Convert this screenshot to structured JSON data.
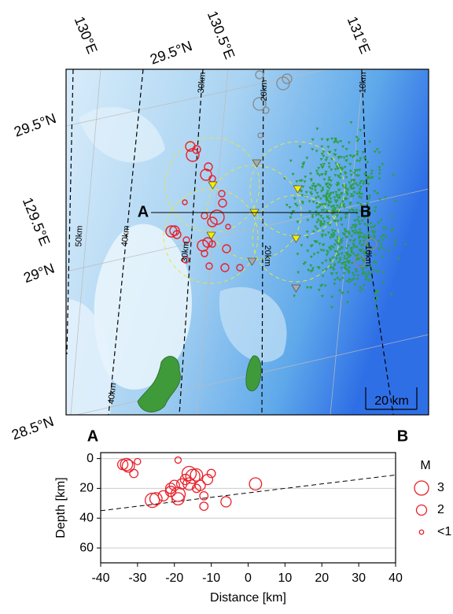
{
  "chart_data": [
    {
      "type": "map",
      "top_labels": [
        "130°E",
        "29.5°N",
        "130.5°E",
        "131°E"
      ],
      "left_labels": [
        "29.5°N",
        "129.5°E",
        "29°N",
        "28.5°N"
      ],
      "profile_start": "A",
      "profile_end": "B",
      "depth_contour_labels": [
        "50km",
        "40km",
        "30km",
        "20km",
        "10km",
        "40km",
        "30km",
        "20km",
        "10km"
      ],
      "scale_bar": "20 km"
    },
    {
      "type": "scatter",
      "start_label": "A",
      "end_label": "B",
      "xlabel": "Distance [km]",
      "ylabel": "Depth [km]",
      "x": [
        -33,
        -32.5,
        -34,
        -31,
        -30,
        -26,
        -25,
        -23,
        -21,
        -20,
        -21,
        -19,
        -19,
        -19,
        -18,
        -17,
        -16,
        -15,
        -14,
        -14,
        -12,
        -12,
        -11,
        -10,
        -16,
        -13,
        -6,
        2
      ],
      "y": [
        4,
        5,
        4,
        10,
        2,
        28,
        27,
        25,
        20,
        18,
        22,
        24,
        27,
        1,
        17,
        14,
        10,
        12,
        11,
        20,
        25,
        32,
        14,
        10,
        17,
        18,
        29,
        17
      ],
      "sizes": [
        2.5,
        2.5,
        2,
        1.5,
        1,
        3,
        2.5,
        2,
        2,
        2,
        2,
        3,
        2.5,
        1,
        2,
        2,
        3,
        3,
        2.5,
        1.5,
        1.5,
        1.5,
        2,
        1.5,
        2.5,
        2,
        2,
        2.5
      ],
      "color": "#e8202a",
      "xlim": [
        -40,
        40
      ],
      "xticks": [
        -40,
        -30,
        -20,
        -10,
        0,
        10,
        20,
        30,
        40
      ],
      "ylim": [
        -4,
        70
      ],
      "yticks": [
        0,
        20,
        40,
        60
      ],
      "y_inverted": true,
      "grid": true,
      "slab": {
        "x": [
          -40,
          40
        ],
        "y": [
          35,
          11
        ]
      },
      "legend": {
        "title": "M",
        "labels": [
          "3",
          "2",
          "<1"
        ],
        "sizes": [
          3,
          2,
          0.5
        ]
      }
    }
  ]
}
